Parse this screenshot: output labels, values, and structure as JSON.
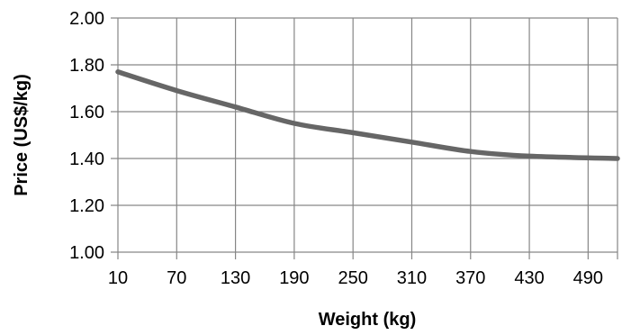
{
  "chart_data": {
    "type": "line",
    "title": "",
    "xlabel": "Weight (kg)",
    "ylabel": "Price (US$/kg)",
    "x_ticks": [
      "10",
      "70",
      "130",
      "190",
      "250",
      "310",
      "370",
      "430",
      "490"
    ],
    "y_ticks": [
      "1.00",
      "1.20",
      "1.40",
      "1.60",
      "1.80",
      "2.00"
    ],
    "xlim": [
      10,
      520
    ],
    "ylim": [
      1.0,
      2.0
    ],
    "grid": true,
    "legend": "none",
    "series": [
      {
        "color": "#666666",
        "points": [
          {
            "x": 10,
            "y": 1.77
          },
          {
            "x": 70,
            "y": 1.69
          },
          {
            "x": 130,
            "y": 1.62
          },
          {
            "x": 190,
            "y": 1.55
          },
          {
            "x": 250,
            "y": 1.51
          },
          {
            "x": 310,
            "y": 1.47
          },
          {
            "x": 370,
            "y": 1.43
          },
          {
            "x": 430,
            "y": 1.41
          },
          {
            "x": 520,
            "y": 1.4
          }
        ]
      }
    ]
  }
}
